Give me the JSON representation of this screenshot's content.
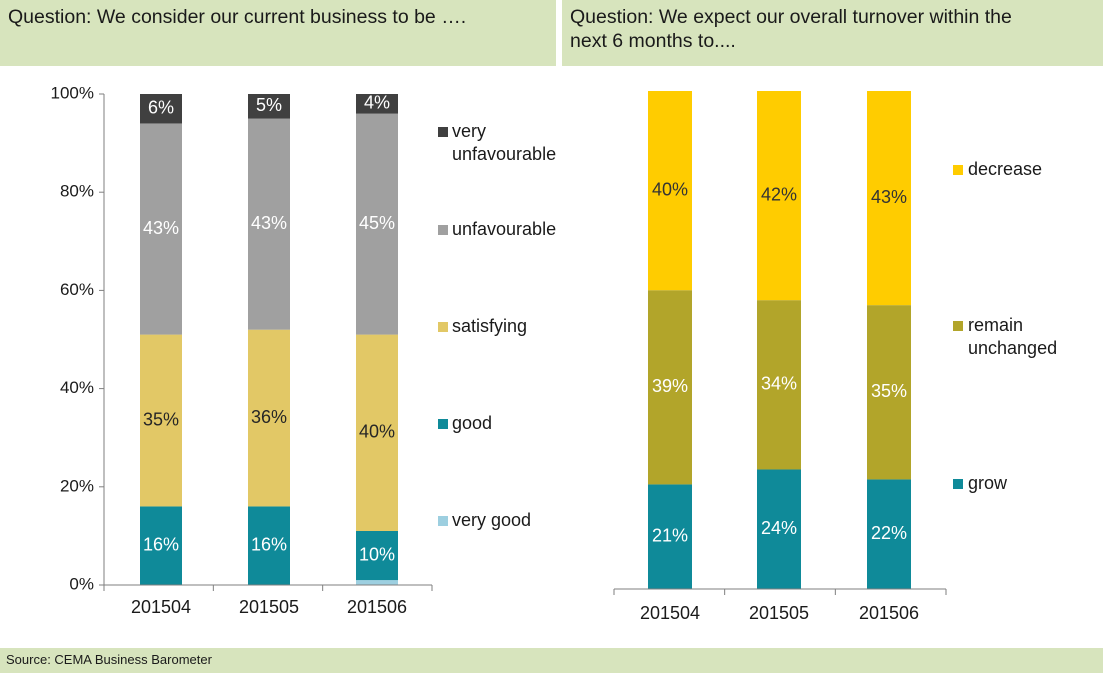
{
  "header": {
    "left_question": "Question: We consider our current business to be ….",
    "right_question_line1": "Question: We expect our overall turnover within the",
    "right_question_line2": "next 6 months to...."
  },
  "footer": {
    "source": "Source: CEMA Business Barometer"
  },
  "chart_data": [
    {
      "type": "bar",
      "stacked": true,
      "title": "Question: We consider our current business to be ….",
      "categories": [
        "201504",
        "201505",
        "201506"
      ],
      "y_ticks": [
        "0%",
        "20%",
        "40%",
        "60%",
        "80%",
        "100%"
      ],
      "ylim": [
        0,
        100
      ],
      "grid": false,
      "legend_position": "right",
      "series": [
        {
          "name": "very good",
          "values": [
            0,
            0,
            1
          ],
          "labels": [
            "",
            "",
            ""
          ],
          "color": "#9dcfe0",
          "label_color": "#ffffff"
        },
        {
          "name": "good",
          "values": [
            16,
            16,
            10
          ],
          "labels": [
            "16%",
            "16%",
            "10%"
          ],
          "color": "#0f8a99",
          "label_color": "#ffffff"
        },
        {
          "name": "satisfying",
          "values": [
            35,
            36,
            40
          ],
          "labels": [
            "35%",
            "36%",
            "40%"
          ],
          "color": "#e2c866",
          "label_color": "#262626"
        },
        {
          "name": "unfavourable",
          "values": [
            43,
            43,
            45
          ],
          "labels": [
            "43%",
            "43%",
            "45%"
          ],
          "color": "#a0a0a0",
          "label_color": "#ffffff"
        },
        {
          "name": "very unfavourable",
          "values": [
            6,
            5,
            4
          ],
          "labels": [
            "6%",
            "5%",
            "4%"
          ],
          "color": "#404040",
          "label_color": "#ffffff"
        }
      ]
    },
    {
      "type": "bar",
      "stacked": true,
      "title": "Question: We expect our overall turnover within the next 6 months to....",
      "categories": [
        "201504",
        "201505",
        "201506"
      ],
      "ylim": [
        0,
        100
      ],
      "grid": false,
      "legend_position": "right",
      "series": [
        {
          "name": "grow",
          "values": [
            21,
            24,
            22
          ],
          "labels": [
            "21%",
            "24%",
            "22%"
          ],
          "color": "#0f8a99",
          "label_color": "#ffffff"
        },
        {
          "name": "remain unchanged",
          "values": [
            39,
            34,
            35
          ],
          "labels": [
            "39%",
            "34%",
            "35%"
          ],
          "color": "#b2a52a",
          "label_color": "#ffffff"
        },
        {
          "name": "decrease",
          "values": [
            40,
            42,
            43
          ],
          "labels": [
            "40%",
            "42%",
            "43%"
          ],
          "color": "#ffcc00",
          "label_color": "#333333"
        }
      ]
    }
  ]
}
